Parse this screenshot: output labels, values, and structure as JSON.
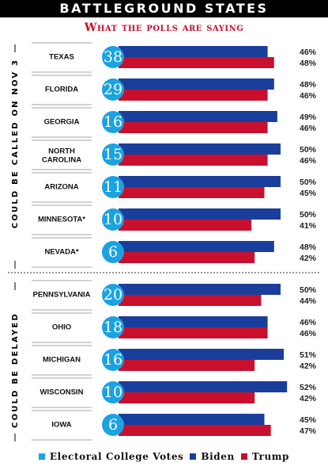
{
  "header": {
    "title": "BATTLEGROUND STATES",
    "subtitle": "What the polls are saying"
  },
  "colors": {
    "electoral": "#1aa3e0",
    "biden": "#1a3e9b",
    "trump": "#c8102e"
  },
  "chart_data": {
    "type": "bar",
    "title": "BATTLEGROUND STATES",
    "subtitle": "What the polls are saying",
    "groups": [
      {
        "label": "COULD BE CALLED ON NOV 3",
        "states": [
          {
            "state": "TEXAS",
            "electoral_votes": 38,
            "biden": 46,
            "trump": 48
          },
          {
            "state": "FLORIDA",
            "electoral_votes": 29,
            "biden": 48,
            "trump": 46
          },
          {
            "state": "GEORGIA",
            "electoral_votes": 16,
            "biden": 49,
            "trump": 46
          },
          {
            "state": "NORTH CAROLINA",
            "electoral_votes": 15,
            "biden": 50,
            "trump": 46
          },
          {
            "state": "ARIZONA",
            "electoral_votes": 11,
            "biden": 50,
            "trump": 45
          },
          {
            "state": "MINNESOTA*",
            "electoral_votes": 10,
            "biden": 50,
            "trump": 41
          },
          {
            "state": "NEVADA*",
            "electoral_votes": 6,
            "biden": 48,
            "trump": 42
          }
        ]
      },
      {
        "label": "COULD BE DELAYED",
        "states": [
          {
            "state": "PENNSYLVANIA",
            "electoral_votes": 20,
            "biden": 50,
            "trump": 44
          },
          {
            "state": "OHIO",
            "electoral_votes": 18,
            "biden": 46,
            "trump": 46
          },
          {
            "state": "MICHIGAN",
            "electoral_votes": 16,
            "biden": 51,
            "trump": 42
          },
          {
            "state": "WISCONSIN",
            "electoral_votes": 10,
            "biden": 52,
            "trump": 42
          },
          {
            "state": "IOWA",
            "electoral_votes": 6,
            "biden": 45,
            "trump": 47
          }
        ]
      }
    ],
    "legend": [
      "Electoral College Votes",
      "Biden",
      "Trump"
    ],
    "legend_position": "bottom"
  }
}
